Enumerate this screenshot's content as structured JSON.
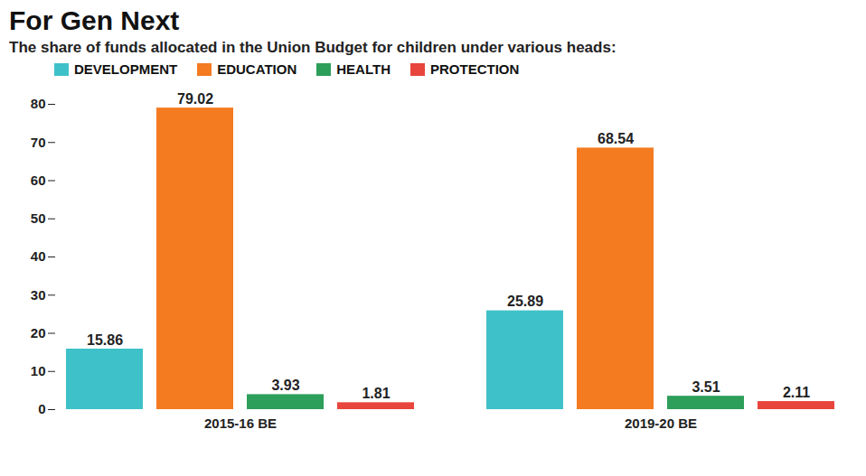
{
  "chart_data": {
    "type": "bar",
    "title": "For Gen Next",
    "subtitle": "The share of funds allocated in the Union Budget for children under various heads:",
    "categories": [
      "2015-16 BE",
      "2019-20 BE"
    ],
    "series": [
      {
        "name": "DEVELOPMENT",
        "color": "#3fc1c9",
        "values": [
          15.86,
          25.89
        ]
      },
      {
        "name": "EDUCATION",
        "color": "#f47b20",
        "values": [
          79.02,
          68.54
        ]
      },
      {
        "name": "HEALTH",
        "color": "#2e9e5b",
        "values": [
          3.93,
          3.51
        ]
      },
      {
        "name": "PROTECTION",
        "color": "#e8453c",
        "values": [
          1.81,
          2.11
        ]
      }
    ],
    "ylim": [
      0,
      80
    ],
    "yticks": [
      0,
      10,
      20,
      30,
      40,
      50,
      60,
      70,
      80
    ],
    "grid": false,
    "legend": "top",
    "data_labels": true
  }
}
